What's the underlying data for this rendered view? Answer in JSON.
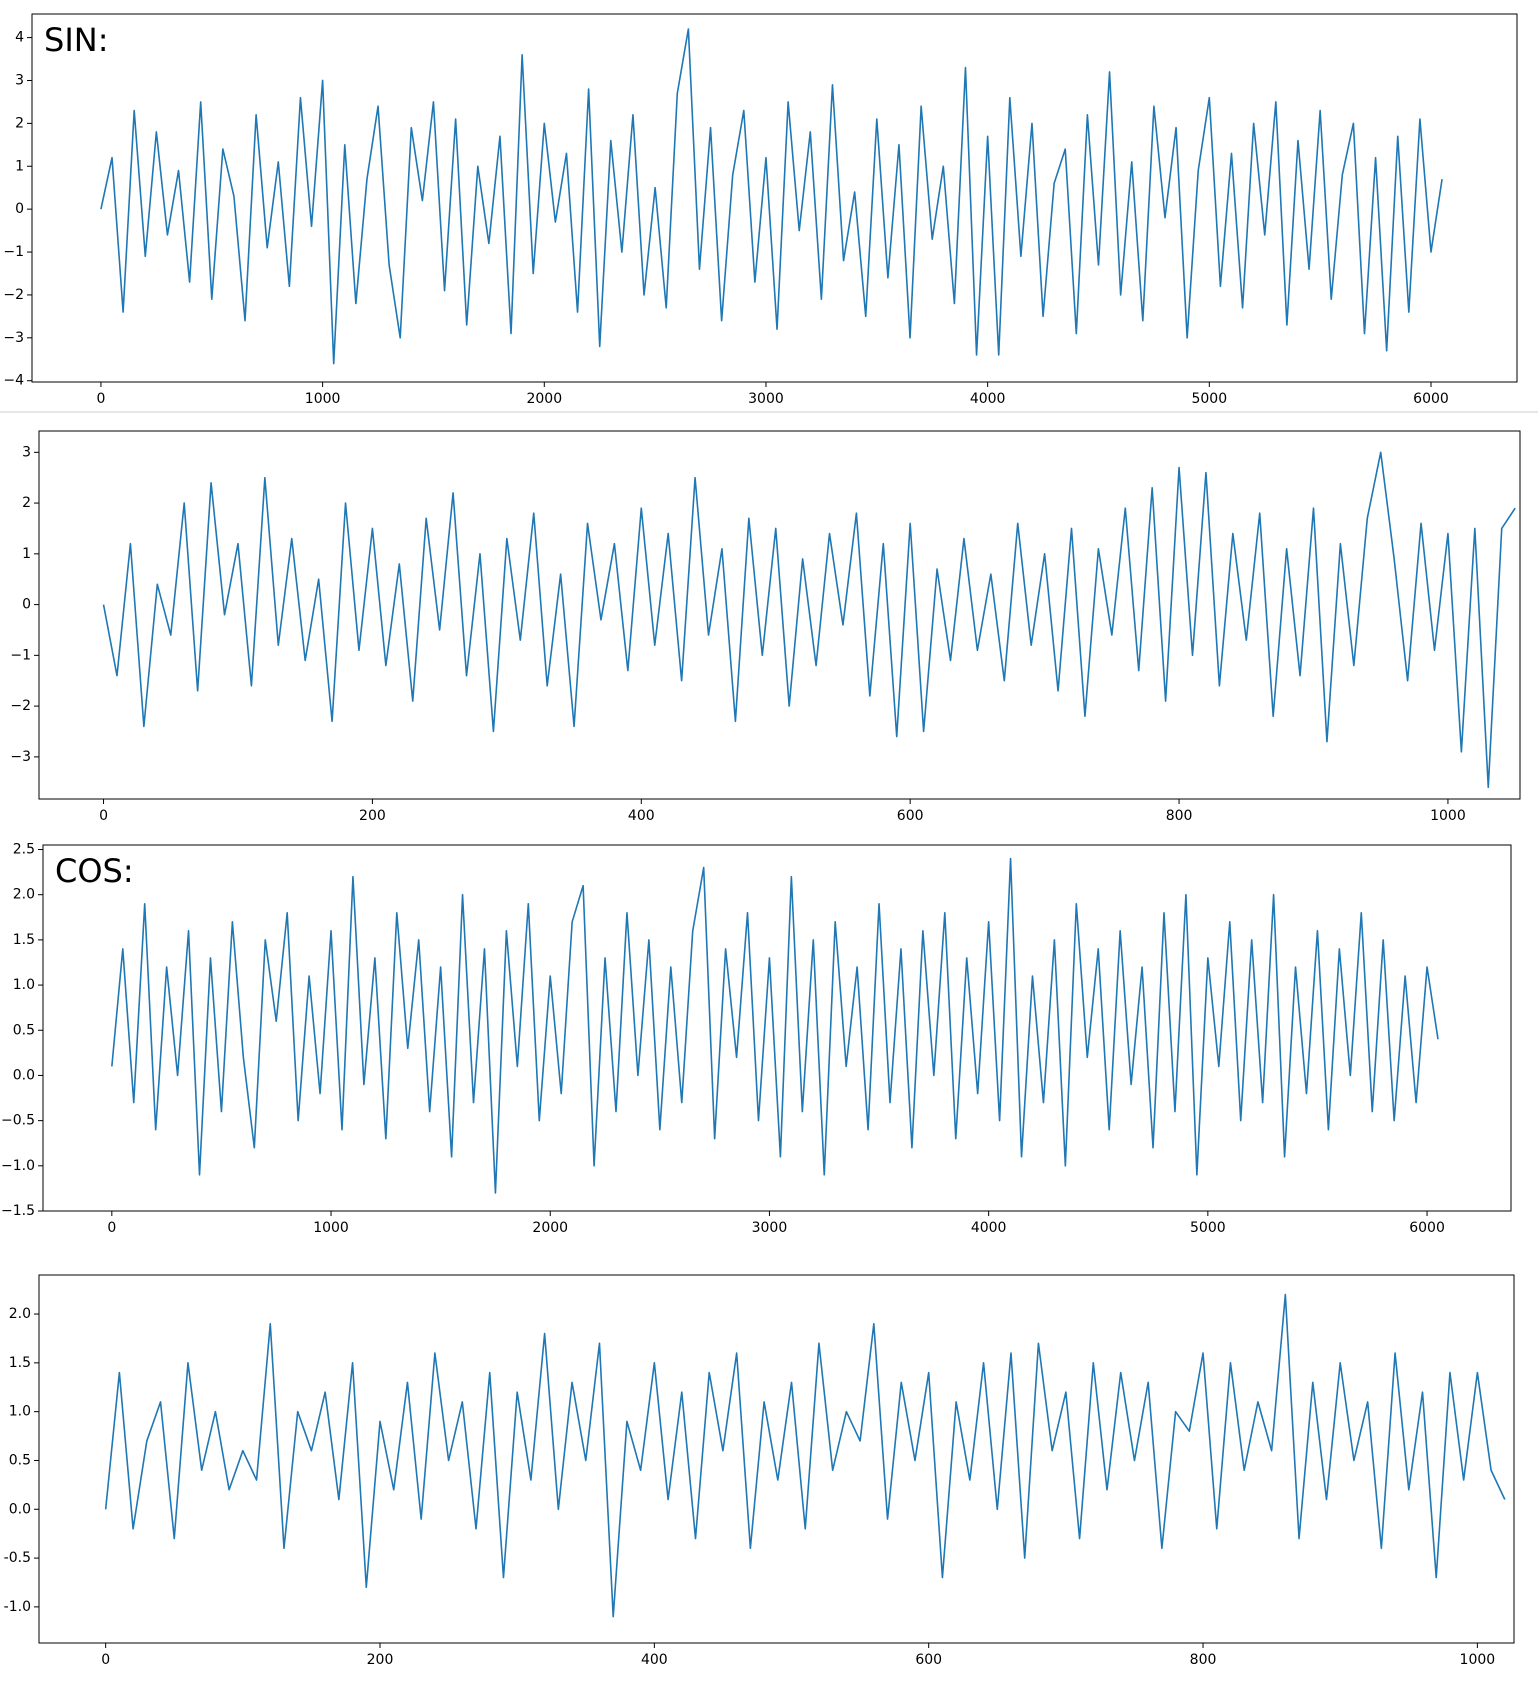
{
  "chart_data": [
    {
      "type": "line",
      "annotation": "SIN:",
      "color": "#1f77b4",
      "xlim": [
        -311,
        6388
      ],
      "ylim": [
        -4.03,
        4.55
      ],
      "xticks": [
        0,
        1000,
        2000,
        3000,
        4000,
        5000,
        6000
      ],
      "yticks": [
        {
          "value": -4,
          "label": "−4"
        },
        {
          "value": -3,
          "label": "−3"
        },
        {
          "value": -2,
          "label": "−2"
        },
        {
          "value": -1,
          "label": "−1"
        },
        0,
        1,
        2,
        3,
        4
      ],
      "x": [
        0,
        50,
        100,
        150,
        200,
        250,
        300,
        350,
        400,
        450,
        500,
        550,
        600,
        650,
        700,
        750,
        800,
        850,
        900,
        950,
        1000,
        1050,
        1100,
        1150,
        1200,
        1250,
        1300,
        1350,
        1400,
        1450,
        1500,
        1550,
        1600,
        1650,
        1700,
        1750,
        1800,
        1850,
        1900,
        1950,
        2000,
        2050,
        2100,
        2150,
        2200,
        2250,
        2300,
        2350,
        2400,
        2450,
        2500,
        2550,
        2600,
        2650,
        2700,
        2750,
        2800,
        2850,
        2900,
        2950,
        3000,
        3050,
        3100,
        3150,
        3200,
        3250,
        3300,
        3350,
        3400,
        3450,
        3500,
        3550,
        3600,
        3650,
        3700,
        3750,
        3800,
        3850,
        3900,
        3950,
        4000,
        4050,
        4100,
        4150,
        4200,
        4250,
        4300,
        4350,
        4400,
        4450,
        4500,
        4550,
        4600,
        4650,
        4700,
        4750,
        4800,
        4850,
        4900,
        4950,
        5000,
        5050,
        5100,
        5150,
        5200,
        5250,
        5300,
        5350,
        5400,
        5450,
        5500,
        5550,
        5600,
        5650,
        5700,
        5750,
        5800,
        5850,
        5900,
        5950,
        6000,
        6050
      ],
      "values": [
        0,
        1.2,
        -2.4,
        2.3,
        -1.1,
        1.8,
        -0.6,
        0.9,
        -1.7,
        2.5,
        -2.1,
        1.4,
        0.3,
        -2.6,
        2.2,
        -0.9,
        1.1,
        -1.8,
        2.6,
        -0.4,
        3.0,
        -3.6,
        1.5,
        -2.2,
        0.7,
        2.4,
        -1.3,
        -3.0,
        1.9,
        0.2,
        2.5,
        -1.9,
        2.1,
        -2.7,
        1.0,
        -0.8,
        1.7,
        -2.9,
        3.6,
        -1.5,
        2.0,
        -0.3,
        1.3,
        -2.4,
        2.8,
        -3.2,
        1.6,
        -1.0,
        2.2,
        -2.0,
        0.5,
        -2.3,
        2.7,
        4.2,
        -1.4,
        1.9,
        -2.6,
        0.8,
        2.3,
        -1.7,
        1.2,
        -2.8,
        2.5,
        -0.5,
        1.8,
        -2.1,
        2.9,
        -1.2,
        0.4,
        -2.5,
        2.1,
        -1.6,
        1.5,
        -3.0,
        2.4,
        -0.7,
        1.0,
        -2.2,
        3.3,
        -3.4,
        1.7,
        -3.4,
        2.6,
        -1.1,
        2.0,
        -2.5,
        0.6,
        1.4,
        -2.9,
        2.2,
        -1.3,
        3.2,
        -2.0,
        1.1,
        -2.6,
        2.4,
        -0.2,
        1.9,
        -3.0,
        0.9,
        2.6,
        -1.8,
        1.3,
        -2.3,
        2.0,
        -0.6,
        2.5,
        -2.7,
        1.6,
        -1.4,
        2.3,
        -2.1,
        0.8,
        2.0,
        -2.9,
        1.2,
        -3.3,
        1.7,
        -2.4,
        2.1,
        -1.0,
        0.7
      ]
    },
    {
      "type": "line",
      "color": "#1f77b4",
      "xlim": [
        -48,
        1053.6
      ],
      "ylim": [
        -3.83,
        3.42
      ],
      "xticks": [
        0,
        200,
        400,
        600,
        800,
        1000
      ],
      "yticks": [
        {
          "value": -3,
          "label": "−3"
        },
        {
          "value": -2,
          "label": "−2"
        },
        {
          "value": -1,
          "label": "−1"
        },
        0,
        1,
        2,
        3
      ],
      "x": [
        0,
        10,
        20,
        30,
        40,
        50,
        60,
        70,
        80,
        90,
        100,
        110,
        120,
        130,
        140,
        150,
        160,
        170,
        180,
        190,
        200,
        210,
        220,
        230,
        240,
        250,
        260,
        270,
        280,
        290,
        300,
        310,
        320,
        330,
        340,
        350,
        360,
        370,
        380,
        390,
        400,
        410,
        420,
        430,
        440,
        450,
        460,
        470,
        480,
        490,
        500,
        510,
        520,
        530,
        540,
        550,
        560,
        570,
        580,
        590,
        600,
        610,
        620,
        630,
        640,
        650,
        660,
        670,
        680,
        690,
        700,
        710,
        720,
        730,
        740,
        750,
        760,
        770,
        780,
        790,
        800,
        810,
        820,
        830,
        840,
        850,
        860,
        870,
        880,
        890,
        900,
        910,
        920,
        930,
        940,
        950,
        960,
        970,
        980,
        990,
        1000,
        1010,
        1020,
        1030,
        1040,
        1050
      ],
      "values": [
        0,
        -1.4,
        1.2,
        -2.4,
        0.4,
        -0.6,
        2.0,
        -1.7,
        2.4,
        -0.2,
        1.2,
        -1.6,
        2.5,
        -0.8,
        1.3,
        -1.1,
        0.5,
        -2.3,
        2.0,
        -0.9,
        1.5,
        -1.2,
        0.8,
        -1.9,
        1.7,
        -0.5,
        2.2,
        -1.4,
        1.0,
        -2.5,
        1.3,
        -0.7,
        1.8,
        -1.6,
        0.6,
        -2.4,
        1.6,
        -0.3,
        1.2,
        -1.3,
        1.9,
        -0.8,
        1.4,
        -1.5,
        2.5,
        -0.6,
        1.1,
        -2.3,
        1.7,
        -1.0,
        1.5,
        -2.0,
        0.9,
        -1.2,
        1.4,
        -0.4,
        1.8,
        -1.8,
        1.2,
        -2.6,
        1.6,
        -2.5,
        0.7,
        -1.1,
        1.3,
        -0.9,
        0.6,
        -1.5,
        1.6,
        -0.8,
        1.0,
        -1.7,
        1.5,
        -2.2,
        1.1,
        -0.6,
        1.9,
        -1.3,
        2.3,
        -1.9,
        2.7,
        -1.0,
        2.6,
        -1.6,
        1.4,
        -0.7,
        1.8,
        -2.2,
        1.1,
        -1.4,
        1.9,
        -2.7,
        1.2,
        -1.2,
        1.7,
        3.0,
        0.9,
        -1.5,
        1.6,
        -0.9,
        1.4,
        -2.9,
        1.5,
        -3.6,
        1.5,
        1.9
      ]
    },
    {
      "type": "line",
      "annotation": "COS:",
      "color": "#1f77b4",
      "xlim": [
        -314,
        6383
      ],
      "ylim": [
        -1.5,
        2.55
      ],
      "xticks": [
        0,
        1000,
        2000,
        3000,
        4000,
        5000,
        6000
      ],
      "yticks": [
        {
          "value": -1.5,
          "label": "−1.5"
        },
        {
          "value": -1,
          "label": "−1.0"
        },
        {
          "value": -0.5,
          "label": "−0.5"
        },
        {
          "value": 0,
          "label": "0.0"
        },
        0.5,
        {
          "value": 1,
          "label": "1.0"
        },
        1.5,
        {
          "value": 2,
          "label": "2.0"
        },
        2.5
      ],
      "x": [
        0,
        50,
        100,
        150,
        200,
        250,
        300,
        350,
        400,
        450,
        500,
        550,
        600,
        650,
        700,
        750,
        800,
        850,
        900,
        950,
        1000,
        1050,
        1100,
        1150,
        1200,
        1250,
        1300,
        1350,
        1400,
        1450,
        1500,
        1550,
        1600,
        1650,
        1700,
        1750,
        1800,
        1850,
        1900,
        1950,
        2000,
        2050,
        2100,
        2150,
        2200,
        2250,
        2300,
        2350,
        2400,
        2450,
        2500,
        2550,
        2600,
        2650,
        2700,
        2750,
        2800,
        2850,
        2900,
        2950,
        3000,
        3050,
        3100,
        3150,
        3200,
        3250,
        3300,
        3350,
        3400,
        3450,
        3500,
        3550,
        3600,
        3650,
        3700,
        3750,
        3800,
        3850,
        3900,
        3950,
        4000,
        4050,
        4100,
        4150,
        4200,
        4250,
        4300,
        4350,
        4400,
        4450,
        4500,
        4550,
        4600,
        4650,
        4700,
        4750,
        4800,
        4850,
        4900,
        4950,
        5000,
        5050,
        5100,
        5150,
        5200,
        5250,
        5300,
        5350,
        5400,
        5450,
        5500,
        5550,
        5600,
        5650,
        5700,
        5750,
        5800,
        5850,
        5900,
        5950,
        6000,
        6050
      ],
      "values": [
        0.1,
        1.4,
        -0.3,
        1.9,
        -0.6,
        1.2,
        0.0,
        1.6,
        -1.1,
        1.3,
        -0.4,
        1.7,
        0.2,
        -0.8,
        1.5,
        0.6,
        1.8,
        -0.5,
        1.1,
        -0.2,
        1.6,
        -0.6,
        2.2,
        -0.1,
        1.3,
        -0.7,
        1.8,
        0.3,
        1.5,
        -0.4,
        1.2,
        -0.9,
        2.0,
        -0.3,
        1.4,
        -1.3,
        1.6,
        0.1,
        1.9,
        -0.5,
        1.1,
        -0.2,
        1.7,
        2.1,
        -1.0,
        1.3,
        -0.4,
        1.8,
        0.0,
        1.5,
        -0.6,
        1.2,
        -0.3,
        1.6,
        2.3,
        -0.7,
        1.4,
        0.2,
        1.8,
        -0.5,
        1.3,
        -0.9,
        2.2,
        -0.4,
        1.5,
        -1.1,
        1.7,
        0.1,
        1.2,
        -0.6,
        1.9,
        -0.3,
        1.4,
        -0.8,
        1.6,
        0.0,
        1.8,
        -0.7,
        1.3,
        -0.2,
        1.7,
        -0.5,
        2.4,
        -0.9,
        1.1,
        -0.3,
        1.5,
        -1.0,
        1.9,
        0.2,
        1.4,
        -0.6,
        1.6,
        -0.1,
        1.2,
        -0.8,
        1.8,
        -0.4,
        2.0,
        -1.1,
        1.3,
        0.1,
        1.7,
        -0.5,
        1.5,
        -0.3,
        2.0,
        -0.9,
        1.2,
        -0.2,
        1.6,
        -0.6,
        1.4,
        0.0,
        1.8,
        -0.4,
        1.5,
        -0.5,
        1.1,
        -0.3,
        1.2,
        0.4
      ]
    },
    {
      "type": "line",
      "color": "#1f77b4",
      "xlim": [
        -48.6,
        1026.7
      ],
      "ylim": [
        -1.37,
        2.4
      ],
      "xticks": [
        0,
        200,
        400,
        600,
        800,
        1000
      ],
      "yticks": [
        {
          "value": -1,
          "label": "-1.0"
        },
        {
          "value": -0.5,
          "label": "-0.5"
        },
        {
          "value": 0,
          "label": "0.0"
        },
        0.5,
        {
          "value": 1,
          "label": "1.0"
        },
        1.5,
        {
          "value": 2,
          "label": "2.0"
        }
      ],
      "x": [
        0,
        10,
        20,
        30,
        40,
        50,
        60,
        70,
        80,
        90,
        100,
        110,
        120,
        130,
        140,
        150,
        160,
        170,
        180,
        190,
        200,
        210,
        220,
        230,
        240,
        250,
        260,
        270,
        280,
        290,
        300,
        310,
        320,
        330,
        340,
        350,
        360,
        370,
        380,
        390,
        400,
        410,
        420,
        430,
        440,
        450,
        460,
        470,
        480,
        490,
        500,
        510,
        520,
        530,
        540,
        550,
        560,
        570,
        580,
        590,
        600,
        610,
        620,
        630,
        640,
        650,
        660,
        670,
        680,
        690,
        700,
        710,
        720,
        730,
        740,
        750,
        760,
        770,
        780,
        790,
        800,
        810,
        820,
        830,
        840,
        850,
        860,
        870,
        880,
        890,
        900,
        910,
        920,
        930,
        940,
        950,
        960,
        970,
        980,
        990,
        1000,
        1010,
        1020
      ],
      "values": [
        0,
        1.4,
        -0.2,
        0.7,
        1.1,
        -0.3,
        1.5,
        0.4,
        1.0,
        0.2,
        0.6,
        0.3,
        1.9,
        -0.4,
        1.0,
        0.6,
        1.2,
        0.1,
        1.5,
        -0.8,
        0.9,
        0.2,
        1.3,
        -0.1,
        1.6,
        0.5,
        1.1,
        -0.2,
        1.4,
        -0.7,
        1.2,
        0.3,
        1.8,
        0.0,
        1.3,
        0.5,
        1.7,
        -1.1,
        0.9,
        0.4,
        1.5,
        0.1,
        1.2,
        -0.3,
        1.4,
        0.6,
        1.6,
        -0.4,
        1.1,
        0.3,
        1.3,
        -0.2,
        1.7,
        0.4,
        1.0,
        0.7,
        1.9,
        -0.1,
        1.3,
        0.5,
        1.4,
        -0.7,
        1.1,
        0.3,
        1.5,
        0.0,
        1.6,
        -0.5,
        1.7,
        0.6,
        1.2,
        -0.3,
        1.5,
        0.2,
        1.4,
        0.5,
        1.3,
        -0.4,
        1.0,
        0.8,
        1.6,
        -0.2,
        1.5,
        0.4,
        1.1,
        0.6,
        2.2,
        -0.3,
        1.3,
        0.1,
        1.5,
        0.5,
        1.1,
        -0.4,
        1.6,
        0.2,
        1.2,
        -0.7,
        1.4,
        0.3,
        1.4,
        0.4,
        0.1
      ]
    }
  ]
}
